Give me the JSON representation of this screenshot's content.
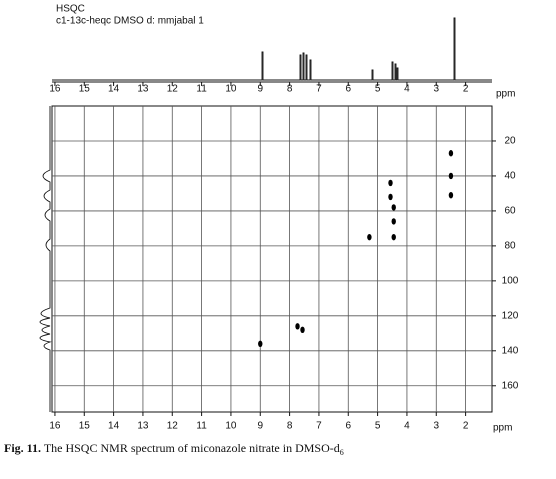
{
  "chart_data": {
    "type": "scatter",
    "title": "HSQC",
    "subtitle": "c1-13c-heqc DMSO d: mmjabal 1",
    "xlabel": "ppm",
    "ylabel": "ppm",
    "x": [
      2.5,
      2.5,
      2.5,
      4.56,
      4.56,
      4.45,
      4.45,
      4.45,
      5.28,
      7.73,
      7.56,
      9.0
    ],
    "values": [
      27,
      40,
      51,
      44,
      52,
      58,
      66,
      75,
      75,
      126,
      128,
      136
    ],
    "color": "#000000",
    "xlim": [
      16.1,
      1.1
    ],
    "xticks": [
      16,
      15,
      14,
      13,
      12,
      11,
      10,
      9,
      8,
      7,
      6,
      5,
      4,
      3,
      2
    ],
    "ylim": [
      0,
      175
    ],
    "yticks": [
      20,
      40,
      60,
      80,
      100,
      120,
      140,
      160
    ],
    "grid": true
  },
  "caption": {
    "label": "Fig. 11.",
    "text": "The HSQC NMR spectrum of miconazole nitrate in DMSO-d",
    "subscript": "6"
  }
}
